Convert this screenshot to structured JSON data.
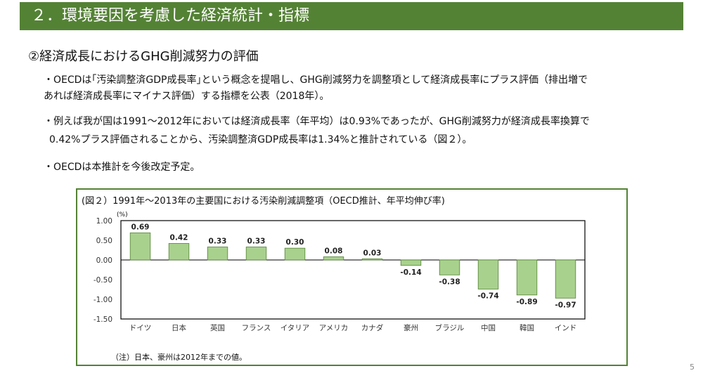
{
  "header": {
    "title": "２．環境要因を考慮した経済統計・指標"
  },
  "section": {
    "subtitle": "②経済成長におけるGHG削減努力の評価"
  },
  "paragraphs": {
    "p1_line1": "・OECDは｢汚染調整済GDP成長率｣という概念を提唱し、GHG削減努力を調整項として経済成長率にプラス評価（排出増で",
    "p1_line2": "あれば経済成長率にマイナス評価）する指標を公表（2018年）。",
    "p2_line1": "・例えば我が国は1991～2012年においては経済成長率（年平均）は0.93%であったが、GHG削減努力が経済成長率換算で",
    "p2_line2": "0.42%プラス評価されることから、汚染調整済GDP成長率は1.34%と推計されている（図２）。",
    "p3": "・OECDは本推計を今後改定予定。"
  },
  "figure": {
    "title": "(図２）1991年～2013年の主要国における汚染削減調整項（OECD推計、年平均伸び率)",
    "note": "（注）日本、豪州は2012年までの値。"
  },
  "page": {
    "number": "5"
  },
  "colors": {
    "header_bg": "#548235",
    "bar_fill": "#A9D18E",
    "bar_stroke": "#548235",
    "frame": "#548235"
  },
  "chart_data": {
    "type": "bar",
    "unit_label": "(%)",
    "categories": [
      "ドイツ",
      "日本",
      "英国",
      "フランス",
      "イタリア",
      "アメリカ",
      "カナダ",
      "豪州",
      "ブラジル",
      "中国",
      "韓国",
      "インド"
    ],
    "values": [
      0.69,
      0.42,
      0.33,
      0.33,
      0.3,
      0.08,
      0.03,
      -0.14,
      -0.38,
      -0.74,
      -0.89,
      -0.97
    ],
    "data_labels": [
      "0.69",
      "0.42",
      "0.33",
      "0.33",
      "0.30",
      "0.08",
      "0.03",
      "-0.14",
      "-0.38",
      "-0.74",
      "-0.89",
      "-0.97"
    ],
    "y_ticks": [
      "1.00",
      "0.50",
      "0.00",
      "-0.50",
      "-1.00",
      "-1.50"
    ],
    "ylim": [
      -1.5,
      1.0
    ],
    "grid": false,
    "legend": "none"
  }
}
